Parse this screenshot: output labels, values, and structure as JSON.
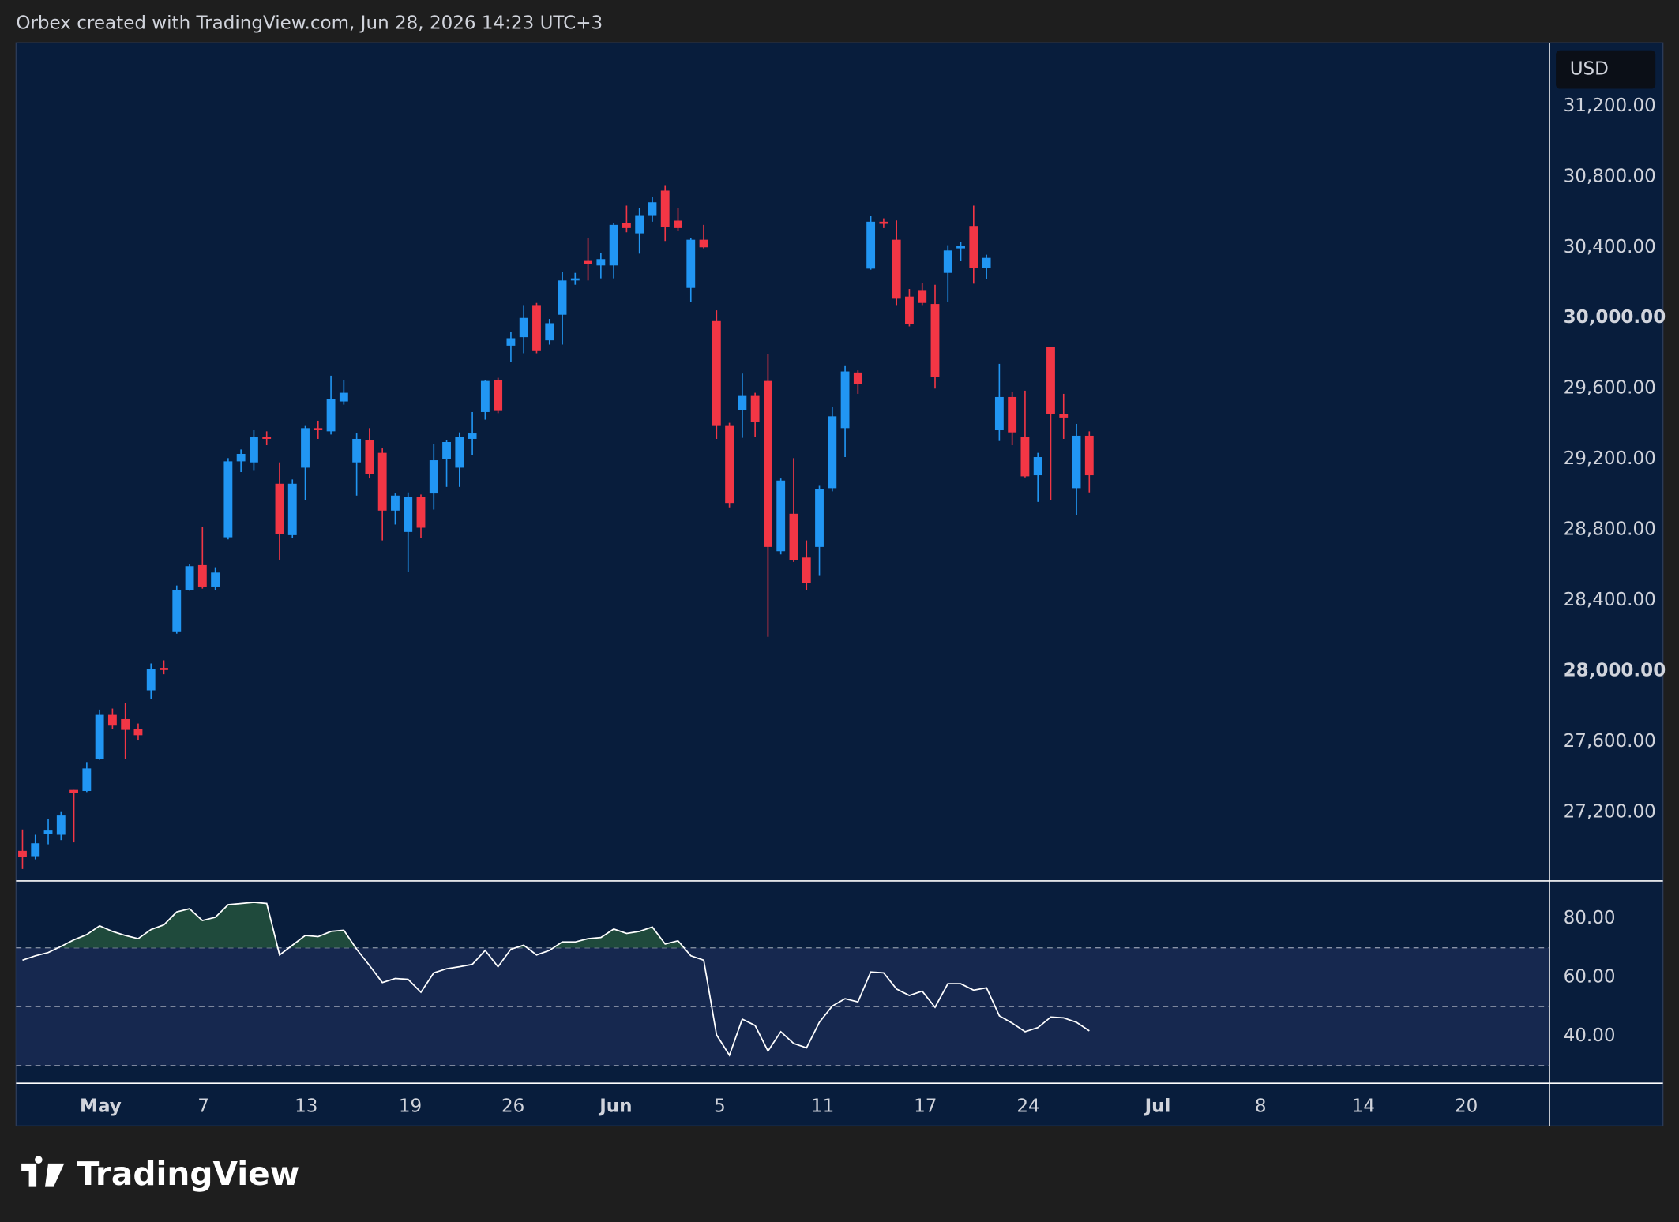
{
  "header": "Orbex created with TradingView.com, Jun 28, 2026 14:23 UTC+3",
  "logo": "TradingView",
  "chart_data": [
    {
      "type": "candlestick",
      "currency": "USD",
      "up_color": "#2196f3",
      "down_color": "#f23645",
      "open": [
        26982,
        26952,
        27079,
        27073,
        27327,
        27321,
        27503,
        27752,
        27728,
        27673,
        27891,
        28018,
        28225,
        28461,
        28600,
        28479,
        28758,
        29188,
        29182,
        29327,
        29061,
        28770,
        29152,
        29376,
        29358,
        29527,
        29182,
        29309,
        29236,
        28909,
        28788,
        28988,
        29006,
        29200,
        29152,
        29315,
        29467,
        29649,
        29843,
        29891,
        30073,
        29873,
        30018,
        30212,
        30327,
        30297,
        30297,
        30539,
        30479,
        30582,
        30721,
        30551,
        30170,
        30443,
        29982,
        29388,
        29479,
        29558,
        29643,
        28679,
        28891,
        28643,
        28703,
        29036,
        29376,
        29691,
        30279,
        30545,
        30443,
        30121,
        30158,
        30079,
        30255,
        30394,
        30521,
        30285,
        29364,
        29552,
        29327,
        29109,
        29836,
        29455,
        29036,
        29333
      ],
      "high": [
        27103,
        27073,
        27164,
        27206,
        27327,
        27485,
        27782,
        27788,
        27819,
        27703,
        28043,
        28061,
        28485,
        28606,
        28818,
        28588,
        29206,
        29255,
        29364,
        29358,
        29182,
        29085,
        29388,
        29418,
        29673,
        29648,
        29346,
        29376,
        29261,
        29006,
        29012,
        29000,
        29285,
        29309,
        29352,
        29467,
        29649,
        29661,
        29921,
        30073,
        30085,
        29994,
        30261,
        30255,
        30455,
        30370,
        30539,
        30636,
        30624,
        30685,
        30752,
        30624,
        30455,
        30527,
        30043,
        29406,
        29685,
        29576,
        29794,
        29091,
        29206,
        28740,
        29049,
        29497,
        29727,
        29703,
        30576,
        30564,
        30552,
        30164,
        30200,
        30188,
        30412,
        30430,
        30636,
        30358,
        29740,
        29582,
        29588,
        29236,
        29836,
        29570,
        29400,
        29358
      ],
      "low": [
        26879,
        26934,
        27019,
        27043,
        27030,
        27315,
        27497,
        27673,
        27503,
        27607,
        27843,
        27982,
        28212,
        28455,
        28467,
        28461,
        28746,
        29127,
        29134,
        29279,
        28631,
        28752,
        28970,
        29315,
        29340,
        29509,
        28994,
        29091,
        28740,
        28830,
        28564,
        28752,
        28915,
        29043,
        29043,
        29224,
        29424,
        29461,
        29752,
        29800,
        29800,
        29849,
        29849,
        30188,
        30212,
        30224,
        30224,
        30485,
        30364,
        30545,
        30436,
        30491,
        30091,
        30394,
        29315,
        28927,
        29321,
        29327,
        28194,
        28661,
        28618,
        28461,
        28539,
        29018,
        29212,
        29570,
        30273,
        30509,
        30073,
        29952,
        30073,
        29600,
        30091,
        30321,
        30194,
        30218,
        29303,
        29279,
        29097,
        28958,
        28970,
        29315,
        28885,
        29012
      ],
      "close": [
        26946,
        27025,
        27097,
        27182,
        27309,
        27449,
        27752,
        27691,
        27667,
        27637,
        28012,
        28006,
        28461,
        28594,
        28479,
        28558,
        29188,
        29230,
        29327,
        29315,
        28776,
        29061,
        29376,
        29364,
        29540,
        29576,
        29315,
        29115,
        28909,
        28994,
        28988,
        28812,
        29194,
        29297,
        29327,
        29346,
        29643,
        29473,
        29885,
        30000,
        29812,
        29970,
        30212,
        30224,
        30303,
        30333,
        30527,
        30509,
        30582,
        30655,
        30515,
        30509,
        30443,
        30400,
        29388,
        28952,
        29558,
        29412,
        28703,
        29079,
        28630,
        28497,
        29030,
        29443,
        29697,
        29624,
        30545,
        30533,
        30109,
        29964,
        30085,
        29667,
        30382,
        30406,
        30285,
        30340,
        29552,
        29352,
        29103,
        29212,
        29455,
        29436,
        29333,
        29109
      ],
      "xlim": [
        -0.5,
        118.8
      ],
      "xticks": [
        {
          "value": 6.08,
          "label": "May"
        },
        {
          "value": 14.08,
          "label": "7"
        },
        {
          "value": 22.08,
          "label": "13"
        },
        {
          "value": 30.17,
          "label": "19"
        },
        {
          "value": 38.17,
          "label": "26"
        },
        {
          "value": 46.17,
          "label": "Jun"
        },
        {
          "value": 54.25,
          "label": "5"
        },
        {
          "value": 62.25,
          "label": "11"
        },
        {
          "value": 70.25,
          "label": "17"
        },
        {
          "value": 78.25,
          "label": "24"
        },
        {
          "value": 88.33,
          "label": "Jul"
        },
        {
          "value": 96.33,
          "label": "8"
        },
        {
          "value": 104.33,
          "label": "14"
        },
        {
          "value": 112.33,
          "label": "20"
        }
      ],
      "ylim": [
        26818,
        31558
      ],
      "yticks": [
        {
          "value": 27200,
          "label": "27,200.00"
        },
        {
          "value": 27600,
          "label": "27,600.00"
        },
        {
          "value": 28000,
          "label": "28,000.00"
        },
        {
          "value": 28400,
          "label": "28,400.00"
        },
        {
          "value": 28800,
          "label": "28,800.00"
        },
        {
          "value": 29200,
          "label": "29,200.00"
        },
        {
          "value": 29600,
          "label": "29,600.00"
        },
        {
          "value": 30000,
          "label": "30,000.00"
        },
        {
          "value": 30400,
          "label": "30,400.00"
        },
        {
          "value": 30800,
          "label": "30,800.00"
        },
        {
          "value": 31200,
          "label": "31,200.00"
        }
      ],
      "grid": false
    },
    {
      "type": "line",
      "color": "#ffffff",
      "fill_above_color": "#1f4a3c",
      "band_color": "#16284f",
      "values": [
        65.8,
        67.3,
        68.4,
        70.5,
        72.7,
        74.5,
        77.5,
        75.6,
        74.2,
        73.1,
        76.2,
        77.8,
        82.2,
        83.3,
        79.3,
        80.4,
        84.7,
        85.1,
        85.5,
        85.1,
        67.6,
        70.9,
        74.2,
        73.8,
        75.6,
        76.0,
        69.5,
        64.0,
        58.2,
        59.6,
        59.3,
        54.9,
        61.5,
        62.9,
        63.6,
        64.4,
        69.1,
        63.6,
        69.5,
        70.9,
        67.6,
        69.1,
        72.0,
        72.0,
        73.1,
        73.5,
        76.4,
        74.9,
        75.6,
        77.1,
        71.3,
        72.4,
        67.3,
        65.8,
        40.4,
        33.5,
        45.8,
        43.6,
        34.9,
        41.5,
        37.5,
        36.0,
        44.7,
        50.2,
        52.7,
        51.6,
        61.8,
        61.5,
        56.0,
        53.8,
        55.3,
        49.8,
        57.8,
        57.8,
        55.6,
        56.4,
        46.9,
        44.4,
        41.5,
        42.9,
        46.5,
        46.2,
        44.7,
        41.8
      ],
      "levels": [
        70,
        50,
        30
      ],
      "ylim": [
        24,
        92.4
      ],
      "yticks": [
        {
          "value": 40,
          "label": "40.00"
        },
        {
          "value": 60,
          "label": "60.00"
        },
        {
          "value": 80,
          "label": "80.00"
        }
      ]
    }
  ]
}
